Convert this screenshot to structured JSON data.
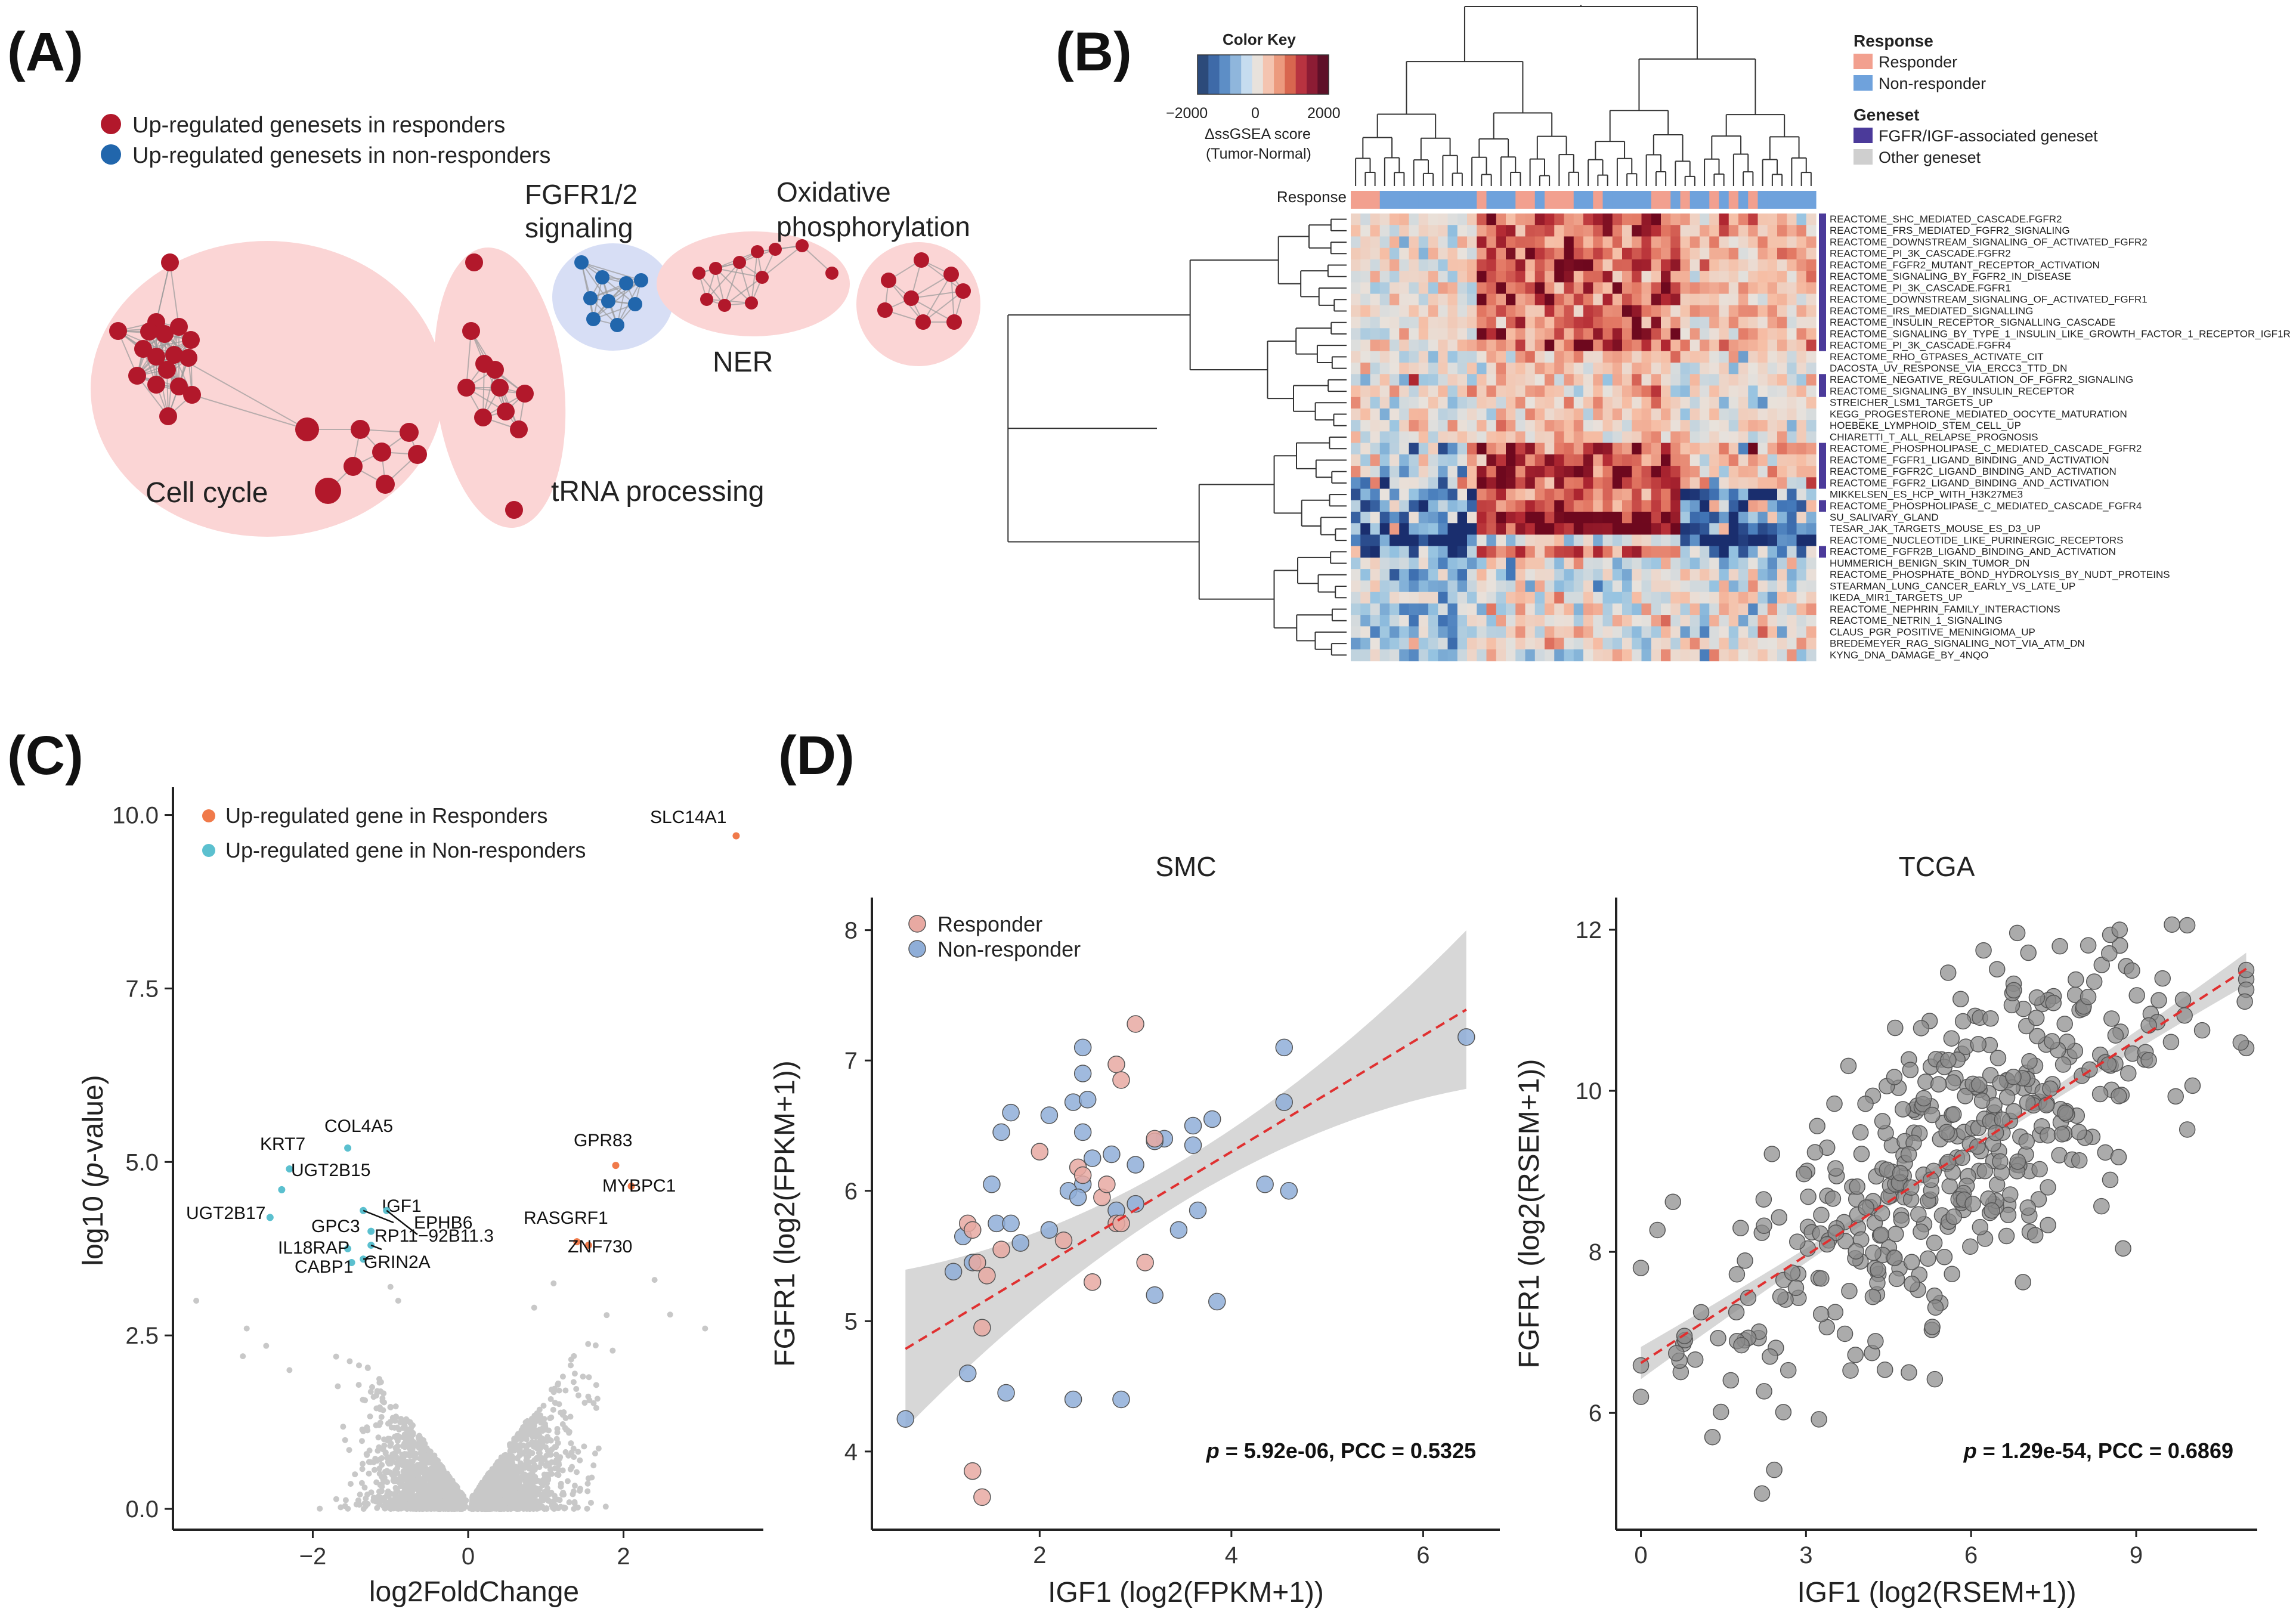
{
  "panels": {
    "A": "(A)",
    "B": "(B)",
    "C": "(C)",
    "D": "(D)"
  },
  "colors": {
    "responder": "#b2182b",
    "nonresponder": "#2166ac",
    "cluster_red": "#fbd5d5",
    "cluster_blue": "#d7def5",
    "up_resp": "#f07a4a",
    "up_nonresp": "#5bc0cf",
    "volcano_bg": "#c8c8c8",
    "smc_resp": "#e8a9a2",
    "smc_nonresp": "#8faed8",
    "tcga_pt": "#8a8a8a",
    "fit_line": "#e03030",
    "ci_band": "#d0d0d0",
    "fgfr_set": "#4b3a9a",
    "other_set": "#cfcfcf"
  },
  "network": {
    "legend": [
      "Up-regulated genesets in responders",
      "Up-regulated genesets in non-responders"
    ],
    "clusters": [
      {
        "label": "Cell cycle"
      },
      {
        "label": "tRNA processing"
      },
      {
        "label": "FGFR1/2 signaling"
      },
      {
        "label": "NER"
      },
      {
        "label": "Oxidative phosphorylation"
      }
    ],
    "fgfr_label_lines": [
      "FGFR1/2",
      "signaling"
    ],
    "oxphos_label_lines": [
      "Oxidative",
      "phosphorylation"
    ]
  },
  "heatmap": {
    "color_key_title": "Color Key",
    "color_key_ticks": [
      "−2000",
      "0",
      "2000"
    ],
    "color_key_sub1": "ΔssGSEA score",
    "color_key_sub2": "(Tumor-Normal)",
    "response_row_label": "Response",
    "legend_response_title": "Response",
    "legend_response_items": [
      "Responder",
      "Non-responder"
    ],
    "legend_geneset_title": "Geneset",
    "legend_geneset_items": [
      "FGFR/IGF-associated geneset",
      "Other geneset"
    ],
    "n_columns": 48,
    "rows": [
      {
        "name": "REACTOME_SHC_MEDIATED_CASCADE.FGFR2",
        "fgfr": true
      },
      {
        "name": "REACTOME_FRS_MEDIATED_FGFR2_SIGNALING",
        "fgfr": true
      },
      {
        "name": "REACTOME_DOWNSTREAM_SIGNALING_OF_ACTIVATED_FGFR2",
        "fgfr": true
      },
      {
        "name": "REACTOME_PI_3K_CASCADE.FGFR2",
        "fgfr": true
      },
      {
        "name": "REACTOME_FGFR2_MUTANT_RECEPTOR_ACTIVATION",
        "fgfr": true
      },
      {
        "name": "REACTOME_SIGNALING_BY_FGFR2_IN_DISEASE",
        "fgfr": true
      },
      {
        "name": "REACTOME_PI_3K_CASCADE.FGFR1",
        "fgfr": true
      },
      {
        "name": "REACTOME_DOWNSTREAM_SIGNALING_OF_ACTIVATED_FGFR1",
        "fgfr": true
      },
      {
        "name": "REACTOME_IRS_MEDIATED_SIGNALLING",
        "fgfr": true
      },
      {
        "name": "REACTOME_INSULIN_RECEPTOR_SIGNALLING_CASCADE",
        "fgfr": true
      },
      {
        "name": "REACTOME_SIGNALING_BY_TYPE_1_INSULIN_LIKE_GROWTH_FACTOR_1_RECEPTOR_IGF1R",
        "fgfr": true
      },
      {
        "name": "REACTOME_PI_3K_CASCADE.FGFR4",
        "fgfr": true
      },
      {
        "name": "REACTOME_RHO_GTPASES_ACTIVATE_CIT",
        "fgfr": false
      },
      {
        "name": "DACOSTA_UV_RESPONSE_VIA_ERCC3_TTD_DN",
        "fgfr": false
      },
      {
        "name": "REACTOME_NEGATIVE_REGULATION_OF_FGFR2_SIGNALING",
        "fgfr": true
      },
      {
        "name": "REACTOME_SIGNALING_BY_INSULIN_RECEPTOR",
        "fgfr": true
      },
      {
        "name": "STREICHER_LSM1_TARGETS_UP",
        "fgfr": false
      },
      {
        "name": "KEGG_PROGESTERONE_MEDIATED_OOCYTE_MATURATION",
        "fgfr": false
      },
      {
        "name": "HOEBEKE_LYMPHOID_STEM_CELL_UP",
        "fgfr": false
      },
      {
        "name": "CHIARETTI_T_ALL_RELAPSE_PROGNOSIS",
        "fgfr": false
      },
      {
        "name": "REACTOME_PHOSPHOLIPASE_C_MEDIATED_CASCADE_FGFR2",
        "fgfr": true
      },
      {
        "name": "REACTOME_FGFR1_LIGAND_BINDING_AND_ACTIVATION",
        "fgfr": true
      },
      {
        "name": "REACTOME_FGFR2C_LIGAND_BINDING_AND_ACTIVATION",
        "fgfr": true
      },
      {
        "name": "REACTOME_FGFR2_LIGAND_BINDING_AND_ACTIVATION",
        "fgfr": true
      },
      {
        "name": "MIKKELSEN_ES_HCP_WITH_H3K27ME3",
        "fgfr": false
      },
      {
        "name": "REACTOME_PHOSPHOLIPASE_C_MEDIATED_CASCADE_FGFR4",
        "fgfr": true
      },
      {
        "name": "SU_SALIVARY_GLAND",
        "fgfr": false
      },
      {
        "name": "TESAR_JAK_TARGETS_MOUSE_ES_D3_UP",
        "fgfr": false
      },
      {
        "name": "REACTOME_NUCLEOTIDE_LIKE_PURINERGIC_RECEPTORS",
        "fgfr": false
      },
      {
        "name": "REACTOME_FGFR2B_LIGAND_BINDING_AND_ACTIVATION",
        "fgfr": true
      },
      {
        "name": "HUMMERICH_BENIGN_SKIN_TUMOR_DN",
        "fgfr": false
      },
      {
        "name": "REACTOME_PHOSPHATE_BOND_HYDROLYSIS_BY_NUDT_PROTEINS",
        "fgfr": false
      },
      {
        "name": "STEARMAN_LUNG_CANCER_EARLY_VS_LATE_UP",
        "fgfr": false
      },
      {
        "name": "IKEDA_MIR1_TARGETS_UP",
        "fgfr": false
      },
      {
        "name": "REACTOME_NEPHRIN_FAMILY_INTERACTIONS",
        "fgfr": false
      },
      {
        "name": "REACTOME_NETRIN_1_SIGNALING",
        "fgfr": false
      },
      {
        "name": "CLAUS_PGR_POSITIVE_MENINGIOMA_UP",
        "fgfr": false
      },
      {
        "name": "BREDEMEYER_RAG_SIGNALING_NOT_VIA_ATM_DN",
        "fgfr": false
      },
      {
        "name": "KYNG_DNA_DAMAGE_BY_4NQO",
        "fgfr": false
      }
    ]
  },
  "chart_data": [
    {
      "type": "scatter",
      "id": "volcano",
      "xlabel": "log2FoldChange",
      "ylabel_parts": [
        "log10 (",
        "p",
        "-value)"
      ],
      "xlim": [
        -3.8,
        3.8
      ],
      "ylim": [
        -0.3,
        10.4
      ],
      "xticks": [
        -2,
        0,
        2
      ],
      "xtick_labels": [
        "−2",
        "0",
        "2"
      ],
      "yticks": [
        0,
        2.5,
        5,
        7.5,
        10
      ],
      "ytick_labels": [
        "0.0",
        "2.5",
        "5.0",
        "7.5",
        "10.0"
      ],
      "legend": [
        "Up-regulated gene in Responders",
        "Up-regulated gene in Non-responders"
      ],
      "highlight": [
        {
          "gene": "SLC14A1",
          "x": 3.45,
          "y": 9.7,
          "group": "resp"
        },
        {
          "gene": "GPR83",
          "x": 1.9,
          "y": 4.95,
          "group": "resp"
        },
        {
          "gene": "MYBPC1",
          "x": 2.1,
          "y": 4.65,
          "group": "resp"
        },
        {
          "gene": "RASGRF1",
          "x": 1.4,
          "y": 3.85,
          "group": "resp"
        },
        {
          "gene": "ZNF730",
          "x": 1.55,
          "y": 3.8,
          "group": "resp"
        },
        {
          "gene": "KRT7",
          "x": -2.3,
          "y": 4.9,
          "group": "non"
        },
        {
          "gene": "COL4A5",
          "x": -1.55,
          "y": 5.2,
          "group": "non"
        },
        {
          "gene": "UGT2B15",
          "x": -2.4,
          "y": 4.6,
          "group": "non"
        },
        {
          "gene": "UGT2B17",
          "x": -2.55,
          "y": 4.2,
          "group": "non"
        },
        {
          "gene": "IGF1",
          "x": -1.35,
          "y": 4.3,
          "group": "non"
        },
        {
          "gene": "EPHB6",
          "x": -1.05,
          "y": 4.3,
          "group": "non"
        },
        {
          "gene": "GPC3",
          "x": -1.25,
          "y": 4.0,
          "group": "non"
        },
        {
          "gene": "IL18RAP",
          "x": -1.55,
          "y": 3.75,
          "group": "non"
        },
        {
          "gene": "RP11−92B11.3",
          "x": -1.25,
          "y": 3.8,
          "group": "non"
        },
        {
          "gene": "CABP1",
          "x": -1.5,
          "y": 3.55,
          "group": "non"
        },
        {
          "gene": "GRIN2A",
          "x": -1.35,
          "y": 3.6,
          "group": "non"
        }
      ]
    },
    {
      "type": "scatter",
      "id": "smc",
      "title": "SMC",
      "xlabel": "IGF1 (log2(FPKM+1))",
      "ylabel": "FGFR1 (log2(FPKM+1))",
      "xlim": [
        0.25,
        6.8
      ],
      "ylim": [
        3.4,
        8.25
      ],
      "xticks": [
        2,
        4,
        6
      ],
      "yticks": [
        4,
        5,
        6,
        7,
        8
      ],
      "legend": [
        "Responder",
        "Non-responder"
      ],
      "fit": {
        "intercept": 4.52,
        "slope": 0.445,
        "x0": 0.6,
        "x1": 6.45
      },
      "annotation_p": "p",
      "annotation_rest": " = 5.92e-06, PCC = 0.5325",
      "responders": [
        [
          3.0,
          7.28
        ],
        [
          2.8,
          6.97
        ],
        [
          2.85,
          6.85
        ],
        [
          2.4,
          6.18
        ],
        [
          2.45,
          6.12
        ],
        [
          2.0,
          6.3
        ],
        [
          2.65,
          5.95
        ],
        [
          2.7,
          6.05
        ],
        [
          2.8,
          5.75
        ],
        [
          3.2,
          6.4
        ],
        [
          3.1,
          5.45
        ],
        [
          2.55,
          5.3
        ],
        [
          2.25,
          5.62
        ],
        [
          1.6,
          5.55
        ],
        [
          1.35,
          5.45
        ],
        [
          1.45,
          5.35
        ],
        [
          1.25,
          5.75
        ],
        [
          1.3,
          5.7
        ],
        [
          1.4,
          4.95
        ],
        [
          1.3,
          3.85
        ],
        [
          1.4,
          3.65
        ],
        [
          2.85,
          5.75
        ]
      ],
      "nonresponders": [
        [
          6.45,
          7.18
        ],
        [
          4.55,
          7.1
        ],
        [
          4.55,
          6.68
        ],
        [
          3.8,
          6.55
        ],
        [
          3.6,
          6.5
        ],
        [
          3.6,
          6.35
        ],
        [
          3.3,
          6.4
        ],
        [
          3.2,
          6.38
        ],
        [
          3.0,
          6.2
        ],
        [
          2.45,
          7.1
        ],
        [
          2.45,
          6.9
        ],
        [
          2.35,
          6.68
        ],
        [
          2.5,
          6.7
        ],
        [
          2.1,
          6.58
        ],
        [
          1.7,
          6.6
        ],
        [
          1.6,
          6.45
        ],
        [
          2.45,
          6.45
        ],
        [
          2.55,
          6.25
        ],
        [
          2.45,
          6.05
        ],
        [
          2.75,
          6.28
        ],
        [
          2.3,
          6.0
        ],
        [
          2.4,
          5.95
        ],
        [
          1.5,
          6.05
        ],
        [
          1.55,
          5.75
        ],
        [
          1.7,
          5.75
        ],
        [
          1.2,
          5.65
        ],
        [
          2.1,
          5.7
        ],
        [
          1.8,
          5.6
        ],
        [
          2.8,
          5.85
        ],
        [
          3.0,
          5.9
        ],
        [
          3.45,
          5.7
        ],
        [
          3.65,
          5.85
        ],
        [
          3.2,
          5.2
        ],
        [
          3.85,
          5.15
        ],
        [
          4.35,
          6.05
        ],
        [
          4.6,
          6.0
        ],
        [
          1.3,
          5.45
        ],
        [
          1.1,
          5.38
        ],
        [
          1.25,
          4.6
        ],
        [
          1.65,
          4.45
        ],
        [
          2.35,
          4.4
        ],
        [
          2.85,
          4.4
        ],
        [
          0.6,
          4.25
        ]
      ]
    },
    {
      "type": "scatter",
      "id": "tcga",
      "title": "TCGA",
      "xlabel": "IGF1 (log2(RSEM+1))",
      "ylabel": "FGFR1 (log2(RSEM+1))",
      "xlim": [
        -0.45,
        11.2
      ],
      "ylim": [
        4.55,
        12.4
      ],
      "xticks": [
        0,
        3,
        6,
        9
      ],
      "yticks": [
        6,
        8,
        10,
        12
      ],
      "fit": {
        "intercept": 6.62,
        "slope": 0.445,
        "x0": 0,
        "x1": 11
      },
      "annotation_p": "p",
      "annotation_rest": " = 1.29e-54, PCC = 0.6869",
      "n_points": 420
    }
  ]
}
